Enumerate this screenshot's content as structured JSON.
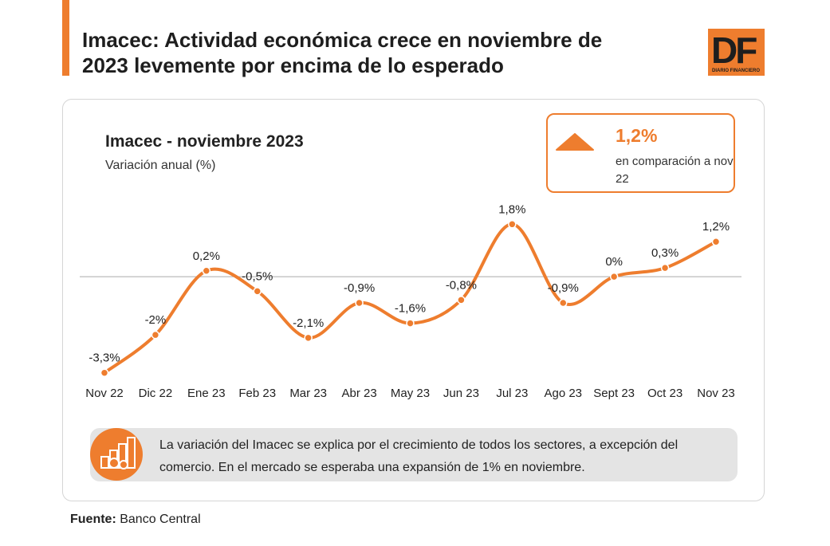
{
  "header": {
    "title": "Imacec: Actividad económica crece en noviembre de 2023 levemente por encima de lo esperado",
    "logo": "DF",
    "logo_sub": "DIARIO FINANCIERO"
  },
  "chart_data": {
    "type": "line",
    "title": "Imacec - noviembre 2023",
    "subtitle": "Variación anual (%)",
    "categories": [
      "Nov 22",
      "Dic 22",
      "Ene 23",
      "Feb 23",
      "Mar 23",
      "Abr 23",
      "May 23",
      "Jun 23",
      "Jul 23",
      "Ago 23",
      "Sept 23",
      "Oct 23",
      "Nov 23"
    ],
    "values": [
      -3.3,
      -2,
      0.2,
      -0.5,
      -2.1,
      -0.9,
      -1.6,
      -0.8,
      1.8,
      -0.9,
      0,
      0.3,
      1.2
    ],
    "value_labels": [
      "-3,3%",
      "-2%",
      "0,2%",
      "-0,5%",
      "-2,1%",
      "-0,9%",
      "-1,6%",
      "-0,8%",
      "1,8%",
      "-0,9%",
      "0%",
      "0,3%",
      "1,2%"
    ],
    "color": "#ee7d2e",
    "ylim": [
      -3.5,
      2
    ],
    "smooth": true
  },
  "highlight": {
    "value": "1,2%",
    "text": "en comparación a nov 22"
  },
  "note": "La variación del Imacec se explica por el crecimiento de todos los sectores, a excepción del comercio. En el mercado se esperaba una expansión de 1% en noviembre.",
  "source": {
    "label": "Fuente:",
    "text": "Banco Central"
  }
}
